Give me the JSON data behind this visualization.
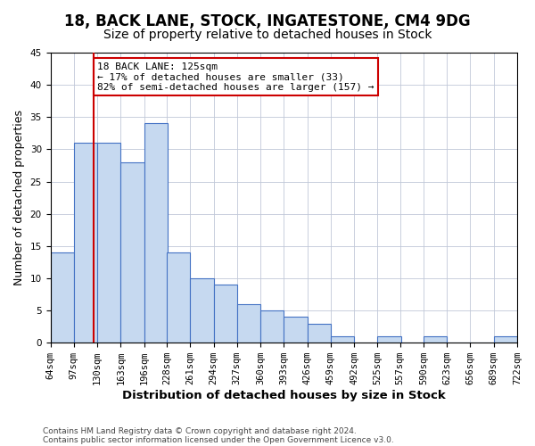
{
  "title": "18, BACK LANE, STOCK, INGATESTONE, CM4 9DG",
  "subtitle": "Size of property relative to detached houses in Stock",
  "xlabel": "Distribution of detached houses by size in Stock",
  "ylabel": "Number of detached properties",
  "footnote1": "Contains HM Land Registry data © Crown copyright and database right 2024.",
  "footnote2": "Contains public sector information licensed under the Open Government Licence v3.0.",
  "bin_labels": [
    "64sqm",
    "97sqm",
    "130sqm",
    "163sqm",
    "196sqm",
    "228sqm",
    "261sqm",
    "294sqm",
    "327sqm",
    "360sqm",
    "393sqm",
    "426sqm",
    "459sqm",
    "492sqm",
    "525sqm",
    "557sqm",
    "590sqm",
    "623sqm",
    "656sqm",
    "689sqm",
    "722sqm"
  ],
  "bin_edges": [
    64,
    97,
    130,
    163,
    196,
    228,
    261,
    294,
    327,
    360,
    393,
    426,
    459,
    492,
    525,
    557,
    590,
    623,
    656,
    689,
    722
  ],
  "counts": [
    14,
    31,
    31,
    28,
    34,
    14,
    10,
    9,
    6,
    5,
    4,
    3,
    1,
    0,
    1,
    0,
    1,
    0,
    0,
    1
  ],
  "bar_color": "#c6d9f0",
  "bar_edge_color": "#4472c4",
  "property_size": 125,
  "vline_color": "#cc0000",
  "annotation_text": "18 BACK LANE: 125sqm\n← 17% of detached houses are smaller (33)\n82% of semi-detached houses are larger (157) →",
  "annotation_box_color": "#ffffff",
  "annotation_box_edge": "#cc0000",
  "ylim": [
    0,
    45
  ],
  "yticks": [
    0,
    5,
    10,
    15,
    20,
    25,
    30,
    35,
    40,
    45
  ],
  "bg_color": "#ffffff",
  "grid_color": "#c0c8d8",
  "title_fontsize": 12,
  "subtitle_fontsize": 10,
  "axis_label_fontsize": 9,
  "tick_fontsize": 7.5
}
